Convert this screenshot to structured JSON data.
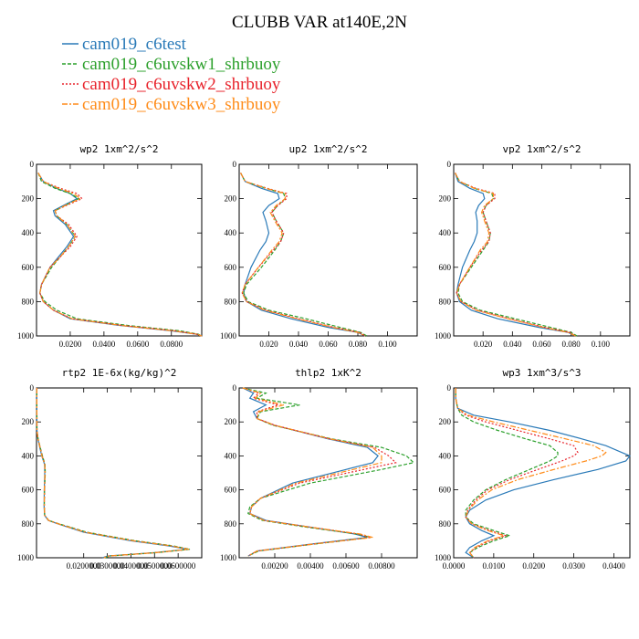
{
  "figure": {
    "title": "CLUBB VAR at140E,2N"
  },
  "legend": [
    {
      "label": "cam019_c6test",
      "color": "#2a7ab8",
      "dash": "solid"
    },
    {
      "label": "cam019_c6uvskw1_shrbuoy",
      "color": "#2ca02c",
      "dash": "dashed"
    },
    {
      "label": "cam019_c6uvskw2_shrbuoy",
      "color": "#e8232b",
      "dash": "dotted"
    },
    {
      "label": "cam019_c6uvskw3_shrbuoy",
      "color": "#ff8c1a",
      "dash": "dashdot"
    }
  ],
  "chart_data": [
    {
      "type": "line",
      "title": "wp2  1xm^2/s^2",
      "xlim": [
        0,
        0.098
      ],
      "ylim": [
        1000,
        0
      ],
      "xticks": [
        0.02,
        0.04,
        0.06,
        0.08
      ],
      "xtick_labels": [
        "0.0200",
        "0.0400",
        "0.0600",
        "0.0800"
      ],
      "yticks": [
        0,
        200,
        400,
        600,
        800,
        1000
      ],
      "y": [
        50,
        100,
        140,
        170,
        200,
        230,
        270,
        300,
        350,
        420,
        480,
        540,
        600,
        700,
        750,
        800,
        850,
        900,
        940,
        970,
        990,
        1000
      ],
      "series": [
        {
          "name": "cam019_c6test",
          "x": [
            0.001,
            0.004,
            0.012,
            0.02,
            0.024,
            0.018,
            0.01,
            0.011,
            0.017,
            0.022,
            0.018,
            0.013,
            0.008,
            0.003,
            0.002,
            0.004,
            0.01,
            0.02,
            0.05,
            0.08,
            0.095,
            0.098
          ]
        },
        {
          "name": "cam019_c6uvskw1_shrbuoy",
          "x": [
            0.001,
            0.003,
            0.011,
            0.02,
            0.025,
            0.019,
            0.011,
            0.012,
            0.018,
            0.023,
            0.019,
            0.014,
            0.009,
            0.003,
            0.002,
            0.005,
            0.012,
            0.024,
            0.055,
            0.085,
            0.096,
            0.098
          ]
        },
        {
          "name": "cam019_c6uvskw2_shrbuoy",
          "x": [
            0.001,
            0.004,
            0.014,
            0.024,
            0.027,
            0.02,
            0.011,
            0.012,
            0.019,
            0.024,
            0.02,
            0.014,
            0.008,
            0.003,
            0.002,
            0.004,
            0.01,
            0.021,
            0.052,
            0.082,
            0.095,
            0.098
          ]
        },
        {
          "name": "cam019_c6uvskw3_shrbuoy",
          "x": [
            0.001,
            0.004,
            0.013,
            0.022,
            0.026,
            0.019,
            0.011,
            0.012,
            0.018,
            0.023,
            0.019,
            0.014,
            0.008,
            0.003,
            0.002,
            0.004,
            0.01,
            0.021,
            0.051,
            0.081,
            0.095,
            0.098
          ]
        }
      ]
    },
    {
      "type": "line",
      "title": "up2  1xm^2/s^2",
      "xlim": [
        0,
        0.12
      ],
      "ylim": [
        1000,
        0
      ],
      "xticks": [
        0.02,
        0.04,
        0.06,
        0.08,
        0.1
      ],
      "xtick_labels": [
        "0.020",
        "0.040",
        "0.060",
        "0.080",
        "0.100"
      ],
      "yticks": [
        0,
        200,
        400,
        600,
        800,
        1000
      ],
      "y": [
        50,
        100,
        140,
        170,
        200,
        240,
        280,
        330,
        400,
        450,
        500,
        600,
        700,
        750,
        800,
        850,
        900,
        950,
        980,
        1000
      ],
      "series": [
        {
          "name": "cam019_c6test",
          "x": [
            0.001,
            0.004,
            0.015,
            0.026,
            0.027,
            0.02,
            0.016,
            0.018,
            0.02,
            0.018,
            0.014,
            0.008,
            0.004,
            0.003,
            0.005,
            0.015,
            0.035,
            0.06,
            0.08,
            0.085
          ]
        },
        {
          "name": "cam019_c6uvskw1_shrbuoy",
          "x": [
            0.001,
            0.004,
            0.018,
            0.03,
            0.031,
            0.026,
            0.022,
            0.025,
            0.03,
            0.028,
            0.024,
            0.015,
            0.005,
            0.003,
            0.006,
            0.02,
            0.045,
            0.068,
            0.082,
            0.086
          ]
        },
        {
          "name": "cam019_c6uvskw2_shrbuoy",
          "x": [
            0.001,
            0.004,
            0.019,
            0.032,
            0.032,
            0.026,
            0.022,
            0.025,
            0.03,
            0.028,
            0.023,
            0.013,
            0.004,
            0.002,
            0.005,
            0.018,
            0.04,
            0.064,
            0.081,
            0.085
          ]
        },
        {
          "name": "cam019_c6uvskw3_shrbuoy",
          "x": [
            0.001,
            0.004,
            0.018,
            0.031,
            0.031,
            0.025,
            0.021,
            0.024,
            0.029,
            0.027,
            0.022,
            0.013,
            0.004,
            0.002,
            0.005,
            0.017,
            0.039,
            0.063,
            0.08,
            0.085
          ]
        }
      ]
    },
    {
      "type": "line",
      "title": "vp2  1xm^2/s^2",
      "xlim": [
        0,
        0.12
      ],
      "ylim": [
        1000,
        0
      ],
      "xticks": [
        0.02,
        0.04,
        0.06,
        0.08,
        0.1
      ],
      "xtick_labels": [
        "0.020",
        "0.040",
        "0.060",
        "0.080",
        "0.100"
      ],
      "yticks": [
        0,
        200,
        400,
        600,
        800,
        1000
      ],
      "y": [
        50,
        100,
        140,
        170,
        200,
        240,
        280,
        330,
        400,
        450,
        500,
        600,
        700,
        750,
        800,
        850,
        900,
        950,
        980,
        1000
      ],
      "series": [
        {
          "name": "cam019_c6test",
          "x": [
            0.001,
            0.003,
            0.011,
            0.02,
            0.021,
            0.017,
            0.015,
            0.016,
            0.016,
            0.014,
            0.011,
            0.006,
            0.003,
            0.002,
            0.004,
            0.012,
            0.03,
            0.058,
            0.078,
            0.083
          ]
        },
        {
          "name": "cam019_c6uvskw1_shrbuoy",
          "x": [
            0.001,
            0.004,
            0.014,
            0.026,
            0.027,
            0.022,
            0.02,
            0.022,
            0.025,
            0.024,
            0.02,
            0.012,
            0.004,
            0.003,
            0.006,
            0.018,
            0.042,
            0.066,
            0.08,
            0.084
          ]
        },
        {
          "name": "cam019_c6uvskw2_shrbuoy",
          "x": [
            0.001,
            0.004,
            0.015,
            0.028,
            0.028,
            0.022,
            0.02,
            0.022,
            0.025,
            0.024,
            0.019,
            0.011,
            0.004,
            0.002,
            0.005,
            0.016,
            0.038,
            0.062,
            0.079,
            0.083
          ]
        },
        {
          "name": "cam019_c6uvskw3_shrbuoy",
          "x": [
            0.001,
            0.004,
            0.014,
            0.027,
            0.027,
            0.021,
            0.019,
            0.021,
            0.024,
            0.023,
            0.018,
            0.011,
            0.004,
            0.002,
            0.005,
            0.015,
            0.037,
            0.061,
            0.078,
            0.083
          ]
        }
      ]
    },
    {
      "type": "line",
      "title": "rtp2  1E-6x(kg/kg)^2",
      "xlim": [
        0,
        0.07
      ],
      "ylim": [
        1000,
        0
      ],
      "xticks": [
        0.02,
        0.03,
        0.04,
        0.05,
        0.06
      ],
      "xtick_labels": [
        "0.0200000",
        "0.0300000",
        "0.0400000",
        "0.0500000",
        "0.0600000"
      ],
      "yticks": [
        0,
        200,
        400,
        600,
        800,
        1000
      ],
      "y": [
        0,
        250,
        300,
        350,
        400,
        450,
        500,
        600,
        700,
        750,
        780,
        800,
        850,
        900,
        930,
        950,
        970,
        990,
        1000
      ],
      "series": [
        {
          "name": "cam019_c6test",
          "x": [
            0.0001,
            0.0002,
            0.0006,
            0.0014,
            0.0022,
            0.0034,
            0.0035,
            0.0033,
            0.0032,
            0.0034,
            0.005,
            0.009,
            0.02,
            0.04,
            0.056,
            0.064,
            0.05,
            0.03,
            0.028
          ]
        },
        {
          "name": "cam019_c6uvskw1_shrbuoy",
          "x": [
            0.0001,
            0.0002,
            0.0007,
            0.0016,
            0.0025,
            0.0036,
            0.0037,
            0.0034,
            0.0033,
            0.0035,
            0.0052,
            0.0095,
            0.0215,
            0.042,
            0.058,
            0.065,
            0.051,
            0.031,
            0.029
          ]
        },
        {
          "name": "cam019_c6uvskw2_shrbuoy",
          "x": [
            0.0001,
            0.0002,
            0.0006,
            0.0015,
            0.0024,
            0.0035,
            0.0036,
            0.0034,
            0.0033,
            0.0035,
            0.0051,
            0.0092,
            0.0208,
            0.041,
            0.057,
            0.0645,
            0.0505,
            0.0305,
            0.0285
          ]
        },
        {
          "name": "cam019_c6uvskw3_shrbuoy",
          "x": [
            0.0001,
            0.0002,
            0.0006,
            0.0015,
            0.0023,
            0.0035,
            0.0036,
            0.0033,
            0.0033,
            0.0035,
            0.0051,
            0.0092,
            0.0206,
            0.041,
            0.057,
            0.0645,
            0.0505,
            0.0305,
            0.0285
          ]
        }
      ]
    },
    {
      "type": "line",
      "title": "thlp2  1xK^2",
      "xlim": [
        0,
        0.01
      ],
      "ylim": [
        1000,
        0
      ],
      "xticks": [
        0.002,
        0.004,
        0.006,
        0.008
      ],
      "xtick_labels": [
        "0.00200",
        "0.00400",
        "0.00600",
        "0.00800"
      ],
      "yticks": [
        0,
        200,
        400,
        600,
        800,
        1000
      ],
      "y": [
        0,
        30,
        60,
        100,
        140,
        180,
        220,
        300,
        350,
        400,
        440,
        480,
        560,
        650,
        700,
        740,
        780,
        820,
        860,
        880,
        920,
        960,
        990
      ],
      "series": [
        {
          "name": "cam019_c6test",
          "x": [
            0.0002,
            0.0008,
            0.0006,
            0.0015,
            0.0008,
            0.001,
            0.002,
            0.005,
            0.0072,
            0.0078,
            0.0075,
            0.006,
            0.003,
            0.0012,
            0.0007,
            0.0006,
            0.0015,
            0.004,
            0.0065,
            0.0072,
            0.004,
            0.001,
            0.0005
          ]
        },
        {
          "name": "cam019_c6uvskw1_shrbuoy",
          "x": [
            0.0002,
            0.0015,
            0.001,
            0.0034,
            0.0012,
            0.001,
            0.0019,
            0.0052,
            0.008,
            0.0094,
            0.0098,
            0.008,
            0.004,
            0.0012,
            0.0006,
            0.0005,
            0.0013,
            0.0038,
            0.0066,
            0.0074,
            0.0042,
            0.0011,
            0.0005
          ]
        },
        {
          "name": "cam019_c6uvskw2_shrbuoy",
          "x": [
            0.0002,
            0.0011,
            0.0008,
            0.0022,
            0.001,
            0.001,
            0.002,
            0.0051,
            0.0076,
            0.0084,
            0.0088,
            0.007,
            0.0034,
            0.0012,
            0.0007,
            0.0006,
            0.0014,
            0.004,
            0.0067,
            0.0074,
            0.0041,
            0.001,
            0.0005
          ]
        },
        {
          "name": "cam019_c6uvskw3_shrbuoy",
          "x": [
            0.0002,
            0.0012,
            0.0009,
            0.0025,
            0.0011,
            0.001,
            0.002,
            0.0051,
            0.0075,
            0.008,
            0.008,
            0.0064,
            0.0032,
            0.0012,
            0.0007,
            0.0006,
            0.0014,
            0.004,
            0.0068,
            0.0075,
            0.0041,
            0.001,
            0.0005
          ]
        }
      ]
    },
    {
      "type": "line",
      "title": "wp3  1xm^3/s^3",
      "xlim": [
        0,
        0.044
      ],
      "ylim": [
        1000,
        0
      ],
      "xticks": [
        0,
        0.01,
        0.02,
        0.03,
        0.04
      ],
      "xtick_labels": [
        "0.0000",
        "0.0100",
        "0.0200",
        "0.0300",
        "0.0400"
      ],
      "yticks": [
        0,
        200,
        400,
        600,
        800,
        1000
      ],
      "y": [
        0,
        60,
        120,
        160,
        200,
        250,
        300,
        340,
        380,
        400,
        430,
        480,
        540,
        600,
        660,
        720,
        760,
        800,
        840,
        870,
        900,
        940,
        970,
        1000
      ],
      "series": [
        {
          "name": "cam019_c6test",
          "x": [
            0.0005,
            0.0005,
            0.001,
            0.005,
            0.014,
            0.024,
            0.032,
            0.038,
            0.042,
            0.044,
            0.043,
            0.036,
            0.025,
            0.015,
            0.008,
            0.004,
            0.003,
            0.004,
            0.007,
            0.01,
            0.007,
            0.004,
            0.003,
            0.005
          ]
        },
        {
          "name": "cam019_c6uvskw1_shrbuoy",
          "x": [
            0.0005,
            0.0005,
            0.001,
            0.002,
            0.005,
            0.011,
            0.018,
            0.024,
            0.026,
            0.026,
            0.024,
            0.019,
            0.013,
            0.008,
            0.005,
            0.003,
            0.003,
            0.005,
            0.01,
            0.014,
            0.01,
            0.006,
            0.004,
            0.005
          ]
        },
        {
          "name": "cam019_c6uvskw2_shrbuoy",
          "x": [
            0.0005,
            0.0005,
            0.001,
            0.003,
            0.008,
            0.016,
            0.024,
            0.03,
            0.031,
            0.03,
            0.027,
            0.021,
            0.014,
            0.0085,
            0.0055,
            0.0035,
            0.003,
            0.0045,
            0.009,
            0.013,
            0.009,
            0.0055,
            0.004,
            0.005
          ]
        },
        {
          "name": "cam019_c6uvskw3_shrbuoy",
          "x": [
            0.0005,
            0.0005,
            0.001,
            0.0035,
            0.01,
            0.019,
            0.028,
            0.035,
            0.038,
            0.037,
            0.033,
            0.025,
            0.016,
            0.0095,
            0.006,
            0.0037,
            0.003,
            0.0045,
            0.0085,
            0.0125,
            0.0085,
            0.0052,
            0.004,
            0.005
          ]
        }
      ]
    }
  ]
}
